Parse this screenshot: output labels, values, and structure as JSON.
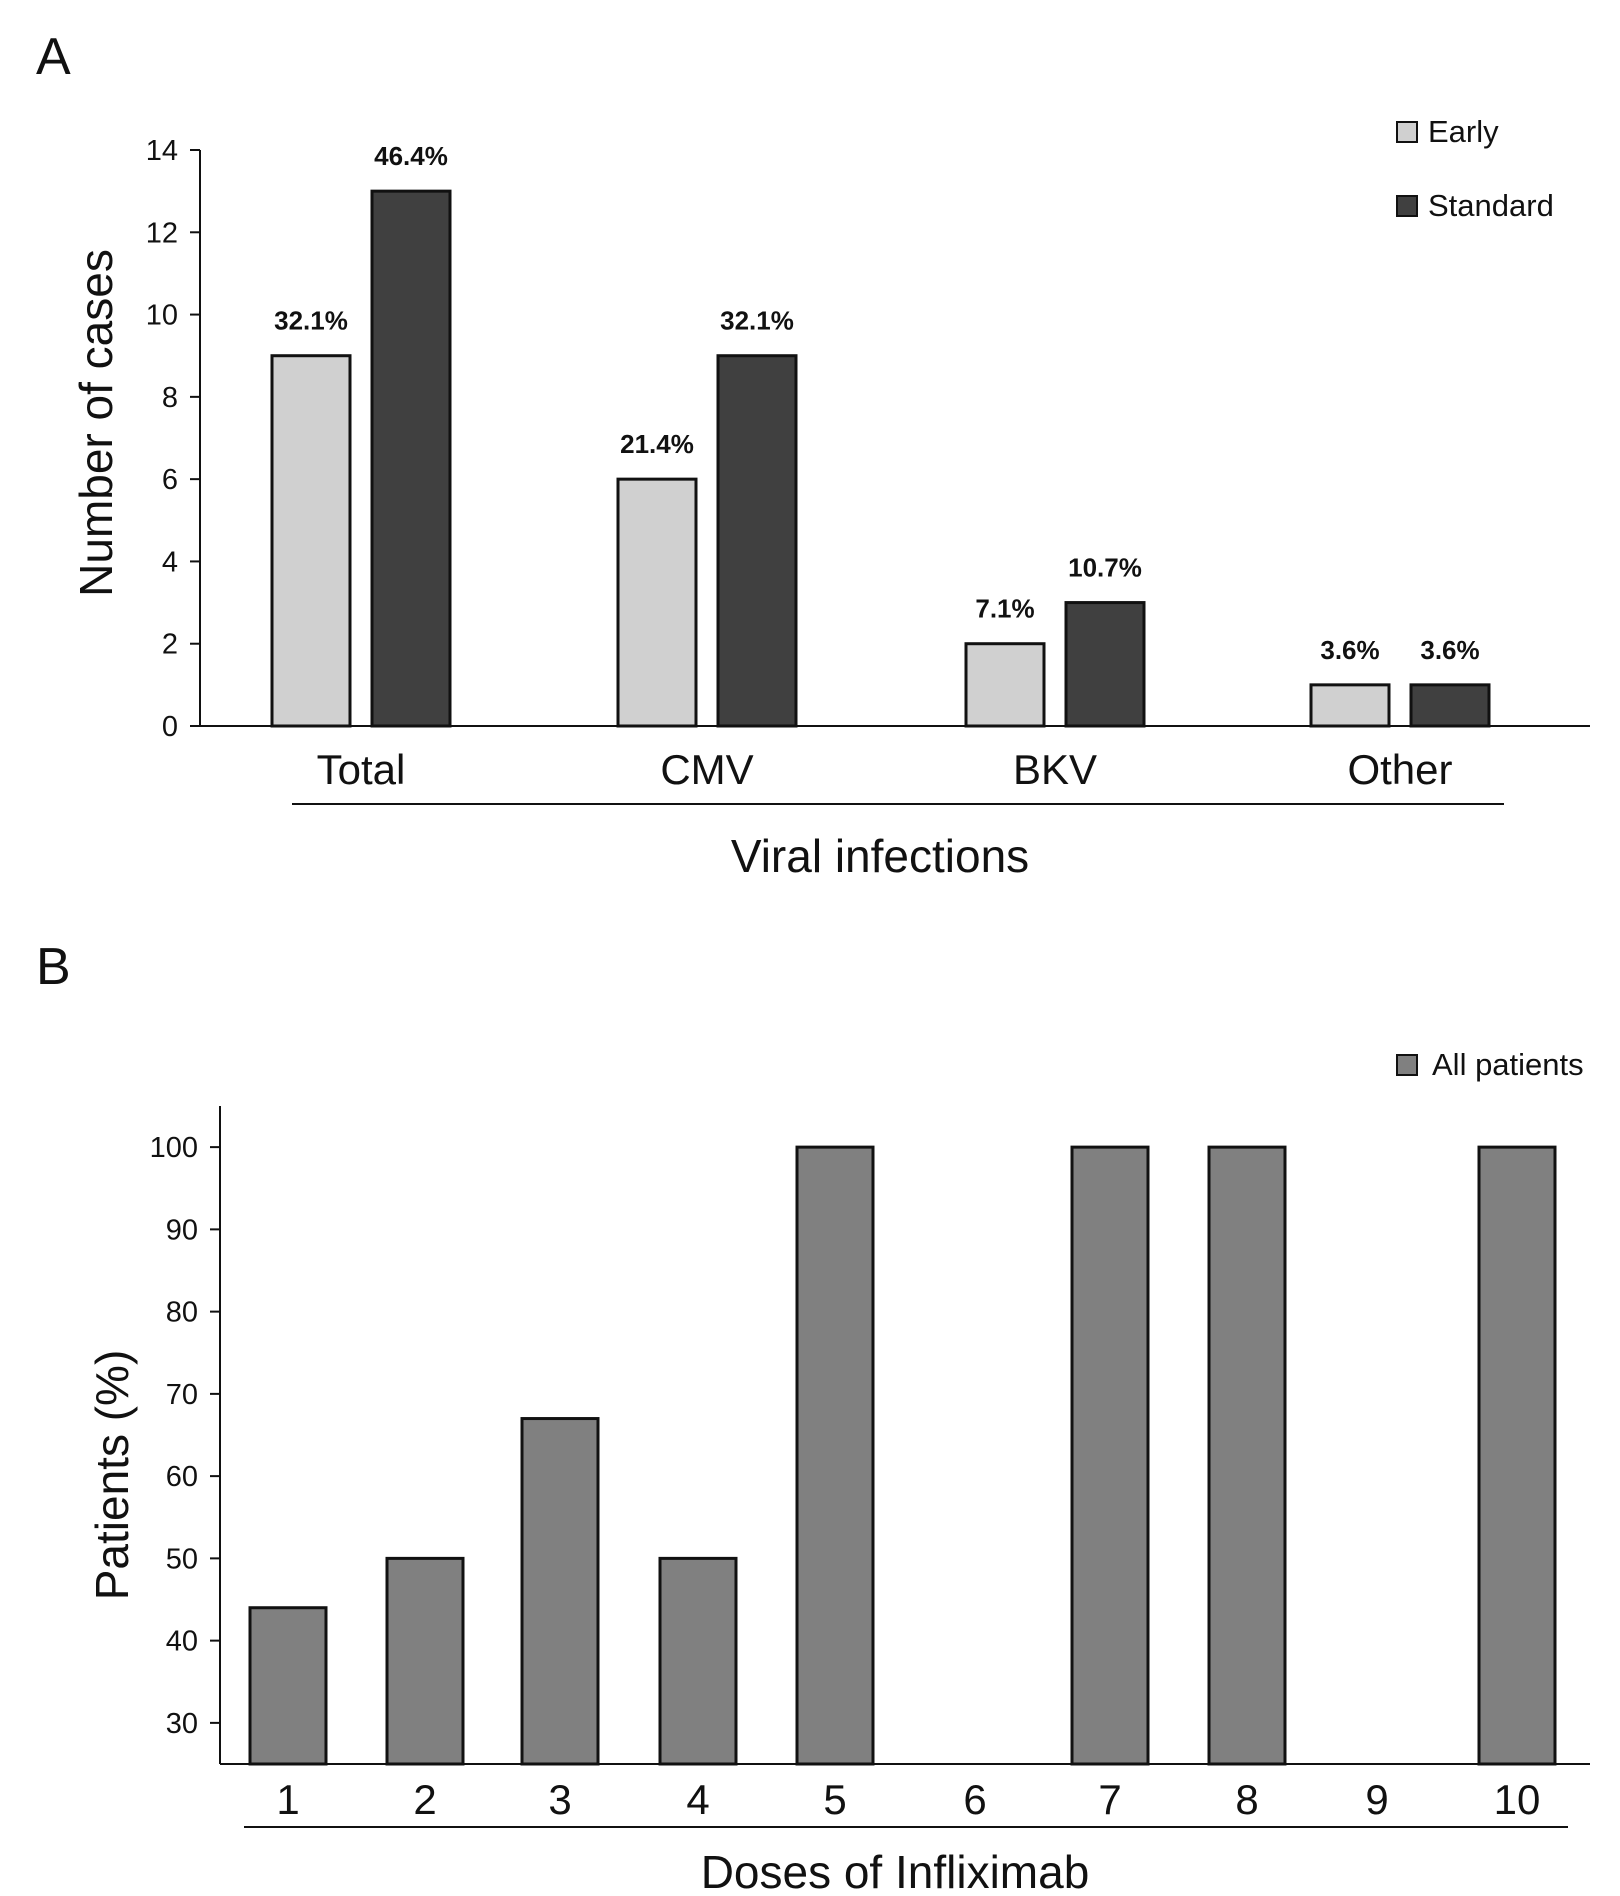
{
  "chart_data": [
    {
      "panel": "A",
      "type": "bar",
      "title": "",
      "xlabel": "Viral infections",
      "ylabel": "Number of cases",
      "ylim": [
        0,
        14
      ],
      "yticks": [
        0,
        2,
        4,
        6,
        8,
        10,
        12,
        14
      ],
      "categories": [
        "Total",
        "CMV",
        "BKV",
        "Other"
      ],
      "series": [
        {
          "name": "Early",
          "color": "#d0d0d0",
          "values": [
            9,
            6,
            2,
            1
          ],
          "labels": [
            "32.1%",
            "21.4%",
            "7.1%",
            "3.6%"
          ]
        },
        {
          "name": "Standard",
          "color": "#404040",
          "values": [
            13,
            9,
            3,
            1
          ],
          "labels": [
            "46.4%",
            "32.1%",
            "10.7%",
            "3.6%"
          ]
        }
      ],
      "legend": "top-right"
    },
    {
      "panel": "B",
      "type": "bar",
      "title": "",
      "xlabel": "Doses of Infliximab",
      "ylabel": "Patients (%)",
      "ylim": [
        25,
        105
      ],
      "yticks": [
        30,
        40,
        50,
        60,
        70,
        80,
        90,
        100
      ],
      "categories": [
        "1",
        "2",
        "3",
        "4",
        "5",
        "6",
        "7",
        "8",
        "9",
        "10"
      ],
      "series": [
        {
          "name": "All patients",
          "color": "#808080",
          "values": [
            44,
            50,
            67,
            50,
            100,
            null,
            100,
            100,
            null,
            100
          ]
        }
      ],
      "legend": "top-right"
    }
  ]
}
